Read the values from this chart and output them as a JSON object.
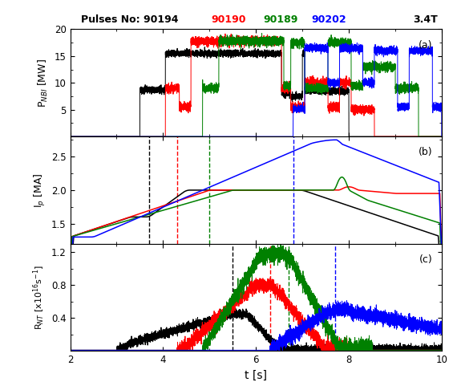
{
  "title_text": "Pulses No: 90194 ",
  "title_90190": "90190",
  "title_90189": "90189",
  "title_90202": "90202",
  "title_bt": "3.4T",
  "colors": {
    "black": "#000000",
    "red": "#ff0000",
    "green": "#008000",
    "blue": "#0000ff"
  },
  "xlim": [
    2,
    10
  ],
  "xlabel": "t [s]",
  "panel_a": {
    "ylabel": "P$_{NBI}$ [MW]",
    "ylim": [
      0,
      20
    ],
    "yticks": [
      5,
      10,
      15,
      20
    ],
    "label": "(a)"
  },
  "panel_b": {
    "ylabel": "I$_{p}$ [MA]",
    "ylim": [
      1.2,
      2.8
    ],
    "yticks": [
      1.5,
      2.0,
      2.5
    ],
    "label": "(b)",
    "vlines": {
      "black": 3.7,
      "red": 4.3,
      "green": 5.0,
      "blue": 6.8
    }
  },
  "panel_c": {
    "ylabel": "R$_{NT}$ [x10$^{16}$s$^{-1}$]",
    "ylim": [
      0,
      1.3
    ],
    "yticks": [
      0.4,
      0.8,
      1.2
    ],
    "label": "(c)",
    "vlines": {
      "black": 5.5,
      "red": 6.3,
      "green": 6.7,
      "blue": 7.7
    }
  }
}
